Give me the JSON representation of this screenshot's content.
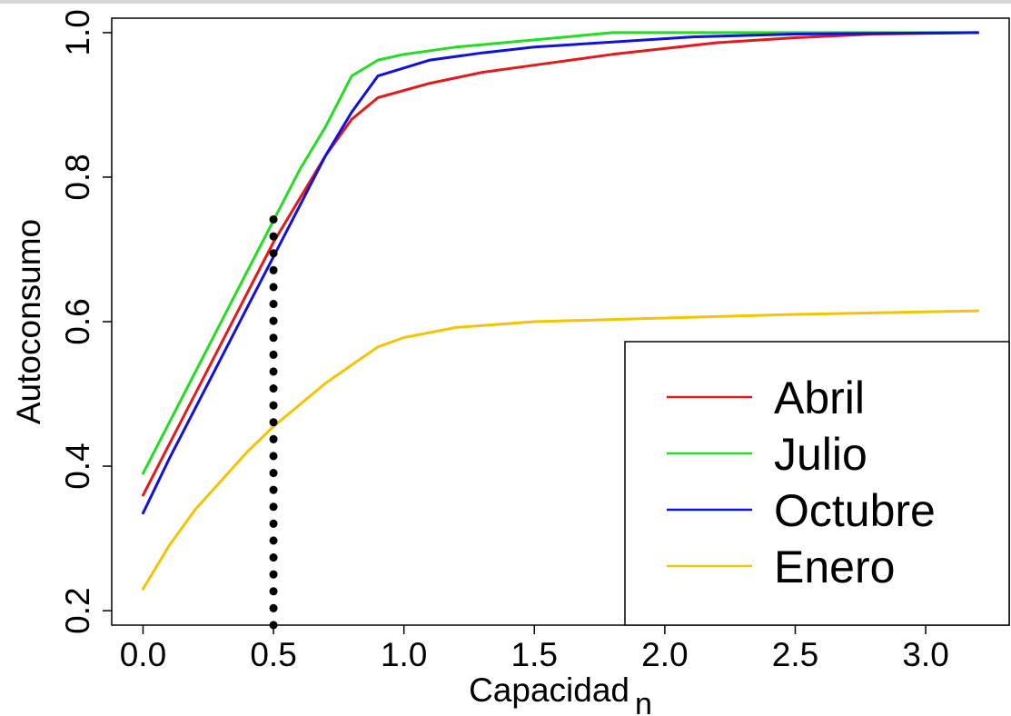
{
  "chart_data": {
    "type": "line",
    "xlabel": "Capacidad",
    "xlabel_subscript": "n",
    "ylabel": "Autoconsumo",
    "xlim": [
      -0.12,
      3.32
    ],
    "ylim": [
      0.18,
      1.02
    ],
    "x_ticks": [
      0.0,
      0.5,
      1.0,
      1.5,
      2.0,
      2.5,
      3.0
    ],
    "x_tick_labels": [
      "0.0",
      "0.5",
      "1.0",
      "1.5",
      "2.0",
      "2.5",
      "3.0"
    ],
    "y_ticks": [
      0.2,
      0.4,
      0.6,
      0.8,
      1.0
    ],
    "y_tick_labels": [
      "0.2",
      "0.4",
      "0.6",
      "0.8",
      "1.0"
    ],
    "grid": false,
    "legend_position": "bottom-right",
    "series": [
      {
        "name": "Abril",
        "color": "#e31a1c",
        "x": [
          0.0,
          0.1,
          0.2,
          0.3,
          0.4,
          0.5,
          0.6,
          0.7,
          0.8,
          0.9,
          1.1,
          1.3,
          1.5,
          1.8,
          2.0,
          2.2,
          2.5,
          2.8,
          3.2
        ],
        "y": [
          0.36,
          0.43,
          0.5,
          0.57,
          0.64,
          0.71,
          0.77,
          0.83,
          0.88,
          0.91,
          0.93,
          0.945,
          0.955,
          0.97,
          0.978,
          0.986,
          0.993,
          0.998,
          1.0
        ]
      },
      {
        "name": "Julio",
        "color": "#22dd22",
        "x": [
          0.0,
          0.1,
          0.2,
          0.3,
          0.4,
          0.5,
          0.6,
          0.7,
          0.8,
          0.9,
          1.0,
          1.2,
          1.5,
          1.8,
          2.2,
          2.6,
          3.2
        ],
        "y": [
          0.39,
          0.46,
          0.53,
          0.6,
          0.67,
          0.74,
          0.81,
          0.87,
          0.94,
          0.962,
          0.97,
          0.98,
          0.99,
          1.0,
          1.0,
          1.0,
          1.0
        ]
      },
      {
        "name": "Octubre",
        "color": "#1111dd",
        "x": [
          0.0,
          0.1,
          0.2,
          0.3,
          0.4,
          0.5,
          0.6,
          0.7,
          0.8,
          0.9,
          1.1,
          1.3,
          1.5,
          1.8,
          2.1,
          2.5,
          3.2
        ],
        "y": [
          0.335,
          0.41,
          0.48,
          0.55,
          0.62,
          0.69,
          0.76,
          0.83,
          0.89,
          0.94,
          0.962,
          0.972,
          0.98,
          0.987,
          0.994,
          0.998,
          1.0
        ]
      },
      {
        "name": "Enero",
        "color": "#f5c400",
        "x": [
          0.0,
          0.1,
          0.2,
          0.3,
          0.4,
          0.5,
          0.6,
          0.7,
          0.8,
          0.9,
          1.0,
          1.2,
          1.5,
          2.0,
          2.5,
          3.2
        ],
        "y": [
          0.23,
          0.29,
          0.34,
          0.38,
          0.42,
          0.455,
          0.485,
          0.515,
          0.54,
          0.565,
          0.578,
          0.592,
          0.6,
          0.605,
          0.61,
          0.615
        ]
      }
    ],
    "reference_line": {
      "x": 0.5,
      "y_range": [
        0.18,
        0.76
      ],
      "style": "dotted",
      "color": "#000000"
    }
  }
}
